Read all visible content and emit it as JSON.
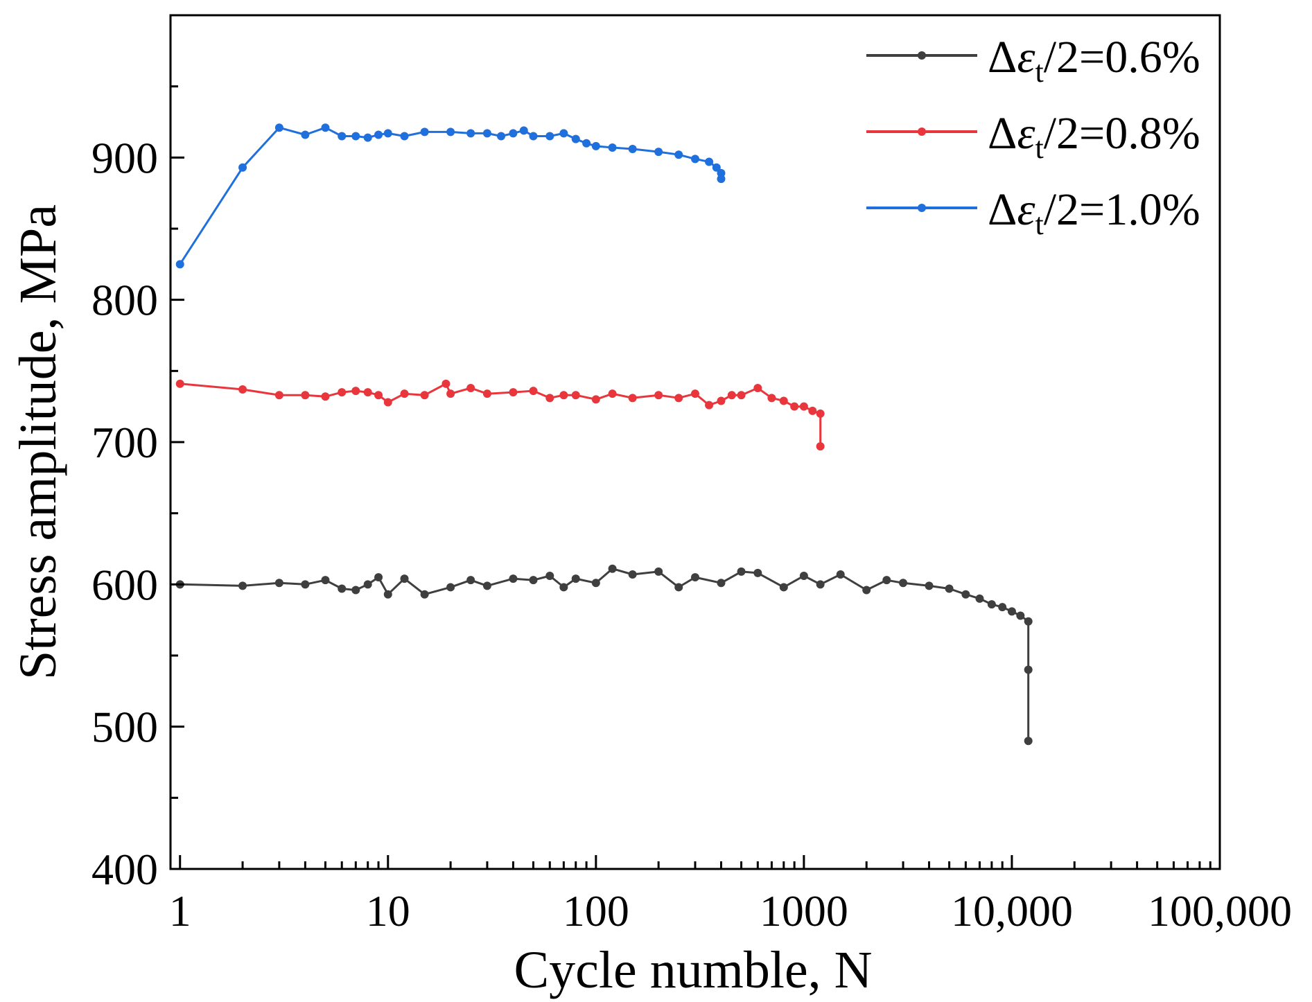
{
  "chart_data": {
    "type": "line",
    "title": "",
    "xlabel": "Cycle numble, N",
    "ylabel": "Stress amplitude, MPa",
    "xscale": "log",
    "xlim": [
      0.9,
      100000
    ],
    "ylim": [
      400,
      1000
    ],
    "grid": false,
    "legend_position": "top-right",
    "x_tick_labels": [
      {
        "value": 1,
        "label": "1"
      },
      {
        "value": 10,
        "label": "10"
      },
      {
        "value": 100,
        "label": "100"
      },
      {
        "value": 1000,
        "label": "1000"
      },
      {
        "value": 10000,
        "label": "10,000"
      },
      {
        "value": 100000,
        "label": "100,000"
      }
    ],
    "y_tick_labels": [
      {
        "value": 400,
        "label": "400"
      },
      {
        "value": 500,
        "label": "500"
      },
      {
        "value": 600,
        "label": "600"
      },
      {
        "value": 700,
        "label": "700"
      },
      {
        "value": 800,
        "label": "800"
      },
      {
        "value": 900,
        "label": "900"
      }
    ],
    "series": [
      {
        "name": "Δε_t/2=0.6%",
        "label_prefix": "Δ",
        "label_symbol": "ε",
        "label_subscript": "t",
        "label_suffix": "/2=0.6%",
        "color": "#3f3f3f",
        "x": [
          1,
          2,
          3,
          4,
          5,
          6,
          7,
          8,
          9,
          10,
          12,
          15,
          20,
          25,
          30,
          40,
          50,
          60,
          70,
          80,
          100,
          120,
          150,
          200,
          250,
          300,
          400,
          500,
          600,
          800,
          1000,
          1200,
          1500,
          2000,
          2500,
          3000,
          4000,
          5000,
          6000,
          7000,
          8000,
          9000,
          10000,
          11000,
          12000,
          12000,
          12000
        ],
        "y": [
          600,
          599,
          601,
          600,
          603,
          597,
          596,
          600,
          605,
          593,
          604,
          593,
          598,
          603,
          599,
          604,
          603,
          606,
          598,
          604,
          601,
          611,
          607,
          609,
          598,
          605,
          601,
          609,
          608,
          598,
          606,
          600,
          607,
          596,
          603,
          601,
          599,
          597,
          593,
          590,
          586,
          584,
          581,
          578,
          574,
          540,
          490
        ]
      },
      {
        "name": "Δε_t/2=0.8%",
        "label_prefix": "Δ",
        "label_symbol": "ε",
        "label_subscript": "t",
        "label_suffix": "/2=0.8%",
        "color": "#e8363c",
        "x": [
          1,
          2,
          3,
          4,
          5,
          6,
          7,
          8,
          9,
          10,
          12,
          15,
          19,
          20,
          25,
          30,
          40,
          50,
          60,
          70,
          80,
          100,
          120,
          150,
          200,
          250,
          300,
          350,
          400,
          450,
          500,
          600,
          700,
          800,
          900,
          1000,
          1100,
          1200,
          1200
        ],
        "y": [
          741,
          737,
          733,
          733,
          732,
          735,
          736,
          735,
          733,
          728,
          734,
          733,
          741,
          734,
          738,
          734,
          735,
          736,
          731,
          733,
          733,
          730,
          734,
          731,
          733,
          731,
          734,
          726,
          729,
          733,
          733,
          738,
          731,
          729,
          725,
          725,
          722,
          720,
          697
        ]
      },
      {
        "name": "Δε_t/2=1.0%",
        "label_prefix": "Δ",
        "label_symbol": "ε",
        "label_subscript": "t",
        "label_suffix": "/2=1.0%",
        "color": "#1f6fdc",
        "x": [
          1,
          2,
          3,
          4,
          5,
          6,
          7,
          8,
          9,
          10,
          12,
          15,
          20,
          25,
          30,
          35,
          40,
          45,
          50,
          60,
          70,
          80,
          90,
          100,
          120,
          150,
          200,
          250,
          300,
          350,
          380,
          400,
          400
        ],
        "y": [
          825,
          893,
          921,
          916,
          921,
          915,
          915,
          914,
          916,
          917,
          915,
          918,
          918,
          917,
          917,
          915,
          917,
          919,
          915,
          915,
          917,
          913,
          910,
          908,
          907,
          906,
          904,
          902,
          899,
          897,
          893,
          889,
          885
        ]
      }
    ]
  }
}
